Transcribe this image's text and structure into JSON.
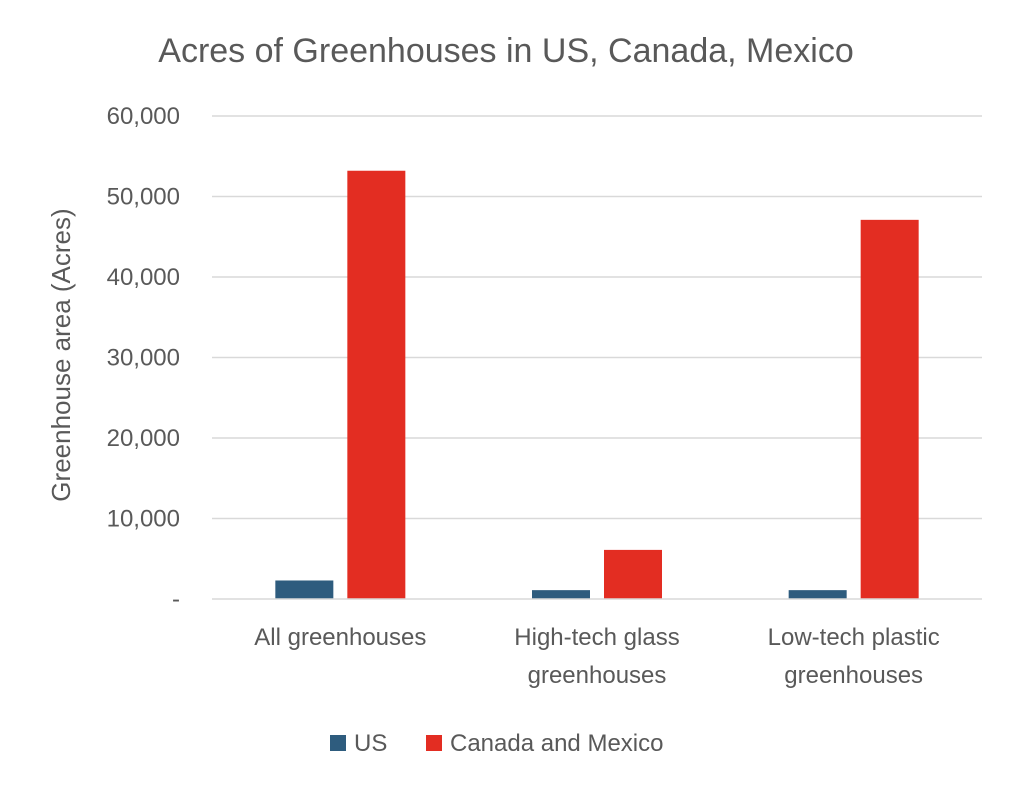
{
  "chart_data": {
    "type": "bar",
    "title": "Acres of Greenhouses in US, Canada, Mexico",
    "xlabel": "",
    "ylabel": "Greenhouse area (Acres)",
    "categories": [
      [
        "All greenhouses"
      ],
      [
        "High-tech glass",
        "greenhouses"
      ],
      [
        "Low-tech plastic",
        "greenhouses"
      ]
    ],
    "series": [
      {
        "name": "US",
        "color": "#2E5C7E",
        "values": [
          2300,
          1100,
          1100
        ]
      },
      {
        "name": "Canada and Mexico",
        "color": "#E32D22",
        "values": [
          53200,
          6100,
          47100
        ]
      }
    ],
    "ylim": [
      0,
      60000
    ],
    "yticks": [
      {
        "value": 0,
        "label": "-"
      },
      {
        "value": 10000,
        "label": "10,000"
      },
      {
        "value": 20000,
        "label": "20,000"
      },
      {
        "value": 30000,
        "label": "30,000"
      },
      {
        "value": 40000,
        "label": "40,000"
      },
      {
        "value": 50000,
        "label": "50,000"
      },
      {
        "value": 60000,
        "label": "60,000"
      }
    ],
    "grid": true,
    "legend": "bottom"
  }
}
